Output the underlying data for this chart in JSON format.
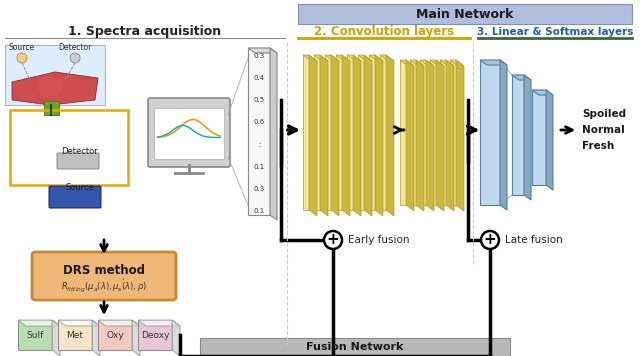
{
  "title": "Main Network",
  "section1": "1. Spectra acquisition",
  "section2": "2. Convolution layers",
  "section3": "3. Linear & Softmax layers",
  "fusion_label": "Fusion Network",
  "early_fusion": "Early fusion",
  "late_fusion": "Late fusion",
  "outputs": [
    "Fresh",
    "Normal",
    "Spoiled"
  ],
  "drs_label": "DRS method",
  "myoglobin_labels": [
    "Sulf",
    "Met",
    "Oxy",
    "Deoxy"
  ],
  "myoglobin_colors": [
    "#b8ddb0",
    "#f5e6c8",
    "#f5c8c0",
    "#e8c8d8"
  ],
  "spectrum_values": [
    "0.3",
    "0.4",
    "0.5",
    "0.6",
    ":",
    "0.1",
    "0.3",
    "0.1"
  ],
  "main_network_bg": "#b8c8e0",
  "section2_color": "#d4a000",
  "section3_color": "#2060a0",
  "conv_layer_face": "#f5e890",
  "conv_layer_top": "#e8d870",
  "conv_layer_right": "#c8b840",
  "linear_layer_face": "#c0d8ec",
  "linear_layer_top": "#a8c4dc",
  "linear_layer_right": "#88a8c0",
  "header_bg": "#b0bede",
  "drs_bg": "#f0b878",
  "drs_border": "#c88830",
  "wire_color": "#e8a800",
  "fig_w": 6.4,
  "fig_h": 3.56,
  "dpi": 100
}
